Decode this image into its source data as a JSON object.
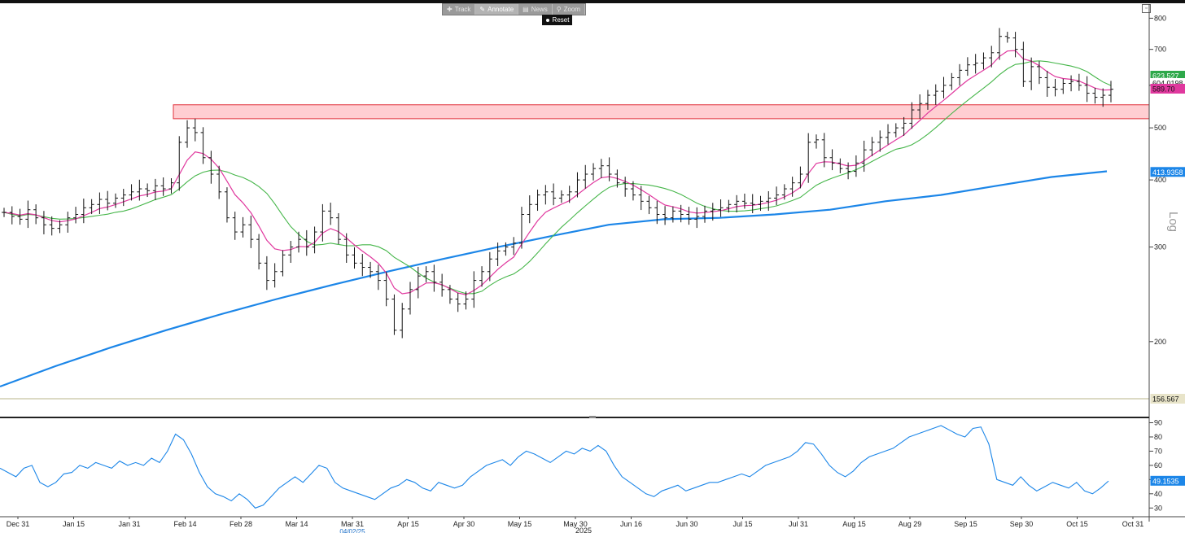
{
  "toolbar": {
    "items": [
      {
        "label": "Track",
        "icon": "crosshair-icon",
        "active": false
      },
      {
        "label": "Annotate",
        "icon": "pencil-icon",
        "active": true
      },
      {
        "label": "News",
        "icon": "news-icon",
        "active": false
      },
      {
        "label": "Zoom",
        "icon": "magnifier-icon",
        "active": false
      }
    ],
    "reset_label": "Reset"
  },
  "chart_data": [
    {
      "type": "ohlc",
      "scale": "log",
      "scale_label": "Log",
      "ylim": [
        145,
        850
      ],
      "y_ticks": [
        200,
        300,
        400,
        500,
        600,
        700,
        800
      ],
      "x_tick_labels": [
        "Dec 31",
        "Jan 15",
        "Jan 31",
        "Feb 14",
        "Feb 28",
        "Mar 14",
        "Mar 31",
        "Apr 15",
        "Apr 30",
        "May 15",
        "May 30",
        "Jun 16",
        "Jun 30",
        "Jul 15",
        "Jul 31",
        "Aug 15",
        "Aug 29",
        "Sep 15",
        "Sep 30",
        "Oct 15",
        "Oct 31"
      ],
      "x_footer_year": "2025",
      "x_footer_date": "04/02/25",
      "price_close_series": [
        348,
        342,
        338,
        352,
        340,
        330,
        325,
        330,
        340,
        345,
        355,
        360,
        368,
        362,
        370,
        375,
        380,
        385,
        382,
        390,
        385,
        395,
        470,
        500,
        490,
        440,
        410,
        380,
        340,
        320,
        330,
        310,
        280,
        260,
        270,
        290,
        300,
        310,
        300,
        320,
        350,
        340,
        310,
        290,
        280,
        275,
        270,
        260,
        240,
        210,
        230,
        250,
        265,
        270,
        258,
        250,
        240,
        235,
        240,
        260,
        270,
        285,
        295,
        300,
        305,
        345,
        360,
        375,
        380,
        370,
        375,
        380,
        400,
        410,
        420,
        425,
        410,
        395,
        385,
        375,
        365,
        355,
        345,
        340,
        350,
        345,
        338,
        342,
        350,
        352,
        355,
        360,
        365,
        362,
        360,
        365,
        370,
        375,
        385,
        395,
        410,
        470,
        475,
        440,
        430,
        420,
        415,
        430,
        455,
        470,
        480,
        490,
        500,
        510,
        540,
        555,
        575,
        585,
        600,
        620,
        640,
        655,
        660,
        675,
        690,
        740,
        735,
        700,
        610,
        650,
        620,
        595,
        590,
        605,
        610,
        600,
        580,
        570,
        575,
        590
      ],
      "series": [
        {
          "name": "",
          "type": "line",
          "color": "#e0389e",
          "role": "short moving average"
        },
        {
          "name": "",
          "type": "line",
          "color": "#46b64a",
          "role": "medium moving average"
        },
        {
          "name": "",
          "type": "line",
          "color": "#1c86e8",
          "role": "long moving average",
          "values": [
            165,
            180,
            195,
            210,
            225,
            240,
            255,
            270,
            285,
            300,
            315,
            330,
            338,
            340,
            345,
            352,
            365,
            375,
            390,
            405,
            415
          ]
        },
        {
          "name": "",
          "type": "line",
          "color": "#556b2f",
          "role": "horizontal level",
          "value": 156.567
        }
      ],
      "resistance_zone": {
        "low": 520,
        "high": 552,
        "color": "#ffb3ba"
      },
      "axis_badges": [
        {
          "text": "623.527",
          "color": "#2ea84a",
          "text_color": "#ffffff"
        },
        {
          "text": "604.0198",
          "color": "#ffffff",
          "text_color": "#111111"
        },
        {
          "text": "589.70",
          "color": "#e0389e",
          "text_color": "#111111"
        },
        {
          "text": "413.9358",
          "color": "#1c86e8",
          "text_color": "#ffffff"
        },
        {
          "text": "156.567",
          "color": "#e8e4c9",
          "text_color": "#111111"
        }
      ]
    },
    {
      "type": "line",
      "ylim": [
        25,
        92
      ],
      "y_ticks": [
        30,
        40,
        50,
        60,
        70,
        80,
        90
      ],
      "series": [
        {
          "name": "",
          "color": "#1c86e8",
          "values": [
            58,
            55,
            52,
            58,
            60,
            48,
            45,
            48,
            54,
            55,
            60,
            58,
            62,
            60,
            58,
            63,
            60,
            62,
            60,
            65,
            62,
            70,
            82,
            78,
            68,
            55,
            45,
            40,
            38,
            35,
            40,
            36,
            30,
            32,
            38,
            44,
            48,
            52,
            48,
            54,
            60,
            58,
            48,
            44,
            42,
            40,
            38,
            36,
            40,
            44,
            46,
            50,
            48,
            44,
            42,
            48,
            46,
            44,
            46,
            52,
            56,
            60,
            62,
            64,
            60,
            66,
            70,
            68,
            65,
            62,
            66,
            70,
            68,
            72,
            70,
            74,
            70,
            60,
            52,
            48,
            44,
            40,
            38,
            42,
            44,
            46,
            42,
            44,
            46,
            48,
            48,
            50,
            52,
            54,
            52,
            56,
            60,
            62,
            64,
            66,
            70,
            76,
            75,
            68,
            60,
            55,
            52,
            56,
            62,
            66,
            68,
            70,
            72,
            76,
            80,
            82,
            84,
            86,
            88,
            85,
            82,
            80,
            86,
            87,
            75,
            50,
            48,
            46,
            52,
            46,
            42,
            45,
            48,
            46,
            44,
            48,
            42,
            40,
            44,
            49
          ]
        }
      ],
      "axis_badges": [
        {
          "text": "49.1535",
          "color": "#1c86e8",
          "text_color": "#ffffff"
        }
      ]
    }
  ]
}
